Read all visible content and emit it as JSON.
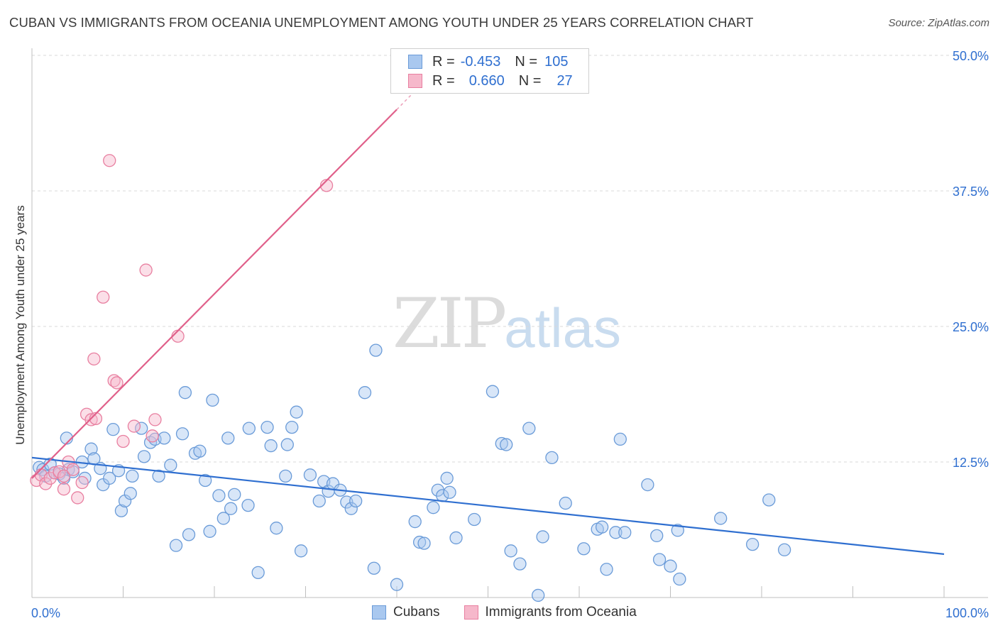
{
  "title": "CUBAN VS IMMIGRANTS FROM OCEANIA UNEMPLOYMENT AMONG YOUTH UNDER 25 YEARS CORRELATION CHART",
  "source": "Source: ZipAtlas.com",
  "watermark": {
    "zip": "ZIP",
    "atlas": "atlas"
  },
  "legend_top": {
    "row1": {
      "r_label": "R =",
      "r_value": "-0.453",
      "n_label": "N =",
      "n_value": "105"
    },
    "row2": {
      "r_label": "R =",
      "r_value": "0.660",
      "n_label": "N =",
      "n_value": "27"
    }
  },
  "legend_bottom": {
    "series1": "Cubans",
    "series2": "Immigrants from Oceania"
  },
  "colors": {
    "blue_fill": "#a9c8ef",
    "blue_stroke": "#6a9bd8",
    "blue_line": "#2f6fd0",
    "pink_fill": "#f6b8cb",
    "pink_stroke": "#e87fa0",
    "pink_line": "#e0608a",
    "tick_label": "#2f6fd0",
    "grid": "#d9d9d9"
  },
  "chart_data": {
    "type": "scatter",
    "title": "CUBAN VS IMMIGRANTS FROM OCEANIA UNEMPLOYMENT AMONG YOUTH UNDER 25 YEARS CORRELATION CHART",
    "xlabel": "",
    "ylabel": "Unemployment Among Youth under 25 years",
    "xlim": [
      0,
      100
    ],
    "ylim": [
      0,
      50
    ],
    "x_tick_labels": [
      "0.0%",
      "100.0%"
    ],
    "y_ticks": [
      12.5,
      25.0,
      37.5,
      50.0
    ],
    "y_tick_labels": [
      "12.5%",
      "25.0%",
      "37.5%",
      "50.0%"
    ],
    "grid": true,
    "legend_placement": "top-center",
    "series": [
      {
        "name": "Cubans",
        "r": -0.453,
        "n": 105,
        "trend": {
          "x": [
            0,
            100
          ],
          "y": [
            12.9,
            4.0
          ]
        },
        "points": [
          [
            0.8,
            12.0
          ],
          [
            1.2,
            11.8
          ],
          [
            1.5,
            11.2
          ],
          [
            2.0,
            12.3
          ],
          [
            2.5,
            11.5
          ],
          [
            3.0,
            11.4
          ],
          [
            3.5,
            11.0
          ],
          [
            4.0,
            11.8
          ],
          [
            3.8,
            14.7
          ],
          [
            4.5,
            11.6
          ],
          [
            5.5,
            12.5
          ],
          [
            5.8,
            11.0
          ],
          [
            6.5,
            13.7
          ],
          [
            6.8,
            12.8
          ],
          [
            7.5,
            11.9
          ],
          [
            7.8,
            10.4
          ],
          [
            8.5,
            11.0
          ],
          [
            8.9,
            15.5
          ],
          [
            9.5,
            11.7
          ],
          [
            9.8,
            8.0
          ],
          [
            10.2,
            8.9
          ],
          [
            10.8,
            9.6
          ],
          [
            11.0,
            11.2
          ],
          [
            12.0,
            15.6
          ],
          [
            12.3,
            13.0
          ],
          [
            13.0,
            14.3
          ],
          [
            13.5,
            14.6
          ],
          [
            13.9,
            11.2
          ],
          [
            14.5,
            14.7
          ],
          [
            15.2,
            12.2
          ],
          [
            15.8,
            4.8
          ],
          [
            16.5,
            15.1
          ],
          [
            16.8,
            18.9
          ],
          [
            17.2,
            5.8
          ],
          [
            17.9,
            13.3
          ],
          [
            18.4,
            13.5
          ],
          [
            19.0,
            10.8
          ],
          [
            19.5,
            6.1
          ],
          [
            19.8,
            18.2
          ],
          [
            20.5,
            9.4
          ],
          [
            21.0,
            7.3
          ],
          [
            21.5,
            14.7
          ],
          [
            21.8,
            8.2
          ],
          [
            22.2,
            9.5
          ],
          [
            23.7,
            8.5
          ],
          [
            23.8,
            15.6
          ],
          [
            24.8,
            2.3
          ],
          [
            25.8,
            15.7
          ],
          [
            26.2,
            14.0
          ],
          [
            26.8,
            6.4
          ],
          [
            27.8,
            11.2
          ],
          [
            28.0,
            14.1
          ],
          [
            28.5,
            15.7
          ],
          [
            29.0,
            17.1
          ],
          [
            29.5,
            4.3
          ],
          [
            30.5,
            11.3
          ],
          [
            31.5,
            8.9
          ],
          [
            32.0,
            10.7
          ],
          [
            32.5,
            9.8
          ],
          [
            33.0,
            10.5
          ],
          [
            33.8,
            9.9
          ],
          [
            34.5,
            8.8
          ],
          [
            35.0,
            8.2
          ],
          [
            35.5,
            8.9
          ],
          [
            36.5,
            18.9
          ],
          [
            37.5,
            2.7
          ],
          [
            37.7,
            22.8
          ],
          [
            40.0,
            1.2
          ],
          [
            42.0,
            7.0
          ],
          [
            42.5,
            5.1
          ],
          [
            43.0,
            5.0
          ],
          [
            44.0,
            8.3
          ],
          [
            44.5,
            9.9
          ],
          [
            45.0,
            9.4
          ],
          [
            45.5,
            11.0
          ],
          [
            45.8,
            9.7
          ],
          [
            46.5,
            5.5
          ],
          [
            48.5,
            7.2
          ],
          [
            50.5,
            19.0
          ],
          [
            51.5,
            14.2
          ],
          [
            52.0,
            14.1
          ],
          [
            52.5,
            4.3
          ],
          [
            53.5,
            3.1
          ],
          [
            54.5,
            15.6
          ],
          [
            55.5,
            0.2
          ],
          [
            57.0,
            12.9
          ],
          [
            58.5,
            8.7
          ],
          [
            60.5,
            4.5
          ],
          [
            62.0,
            6.3
          ],
          [
            62.5,
            6.5
          ],
          [
            63.0,
            2.6
          ],
          [
            64.0,
            6.0
          ],
          [
            64.5,
            14.6
          ],
          [
            65.0,
            6.0
          ],
          [
            67.5,
            10.4
          ],
          [
            68.5,
            5.7
          ],
          [
            68.8,
            3.5
          ],
          [
            70.0,
            2.9
          ],
          [
            70.8,
            6.2
          ],
          [
            71.0,
            1.7
          ],
          [
            75.5,
            7.3
          ],
          [
            79.0,
            4.9
          ],
          [
            80.8,
            9.0
          ],
          [
            82.5,
            4.4
          ],
          [
            56.0,
            5.6
          ]
        ]
      },
      {
        "name": "Immigrants from Oceania",
        "r": 0.66,
        "n": 27,
        "trend": {
          "x": [
            0,
            40
          ],
          "y": [
            11.0,
            45.0
          ],
          "dash_ext_x": [
            40,
            43.5
          ],
          "dash_ext_y": [
            45.0,
            48.0
          ]
        },
        "points": [
          [
            0.5,
            10.8
          ],
          [
            1.0,
            11.3
          ],
          [
            1.5,
            10.5
          ],
          [
            2.0,
            11.0
          ],
          [
            2.5,
            11.5
          ],
          [
            3.0,
            11.6
          ],
          [
            3.5,
            11.2
          ],
          [
            3.5,
            10.0
          ],
          [
            4.0,
            12.5
          ],
          [
            4.5,
            11.8
          ],
          [
            5.0,
            9.2
          ],
          [
            5.5,
            10.6
          ],
          [
            6.0,
            16.9
          ],
          [
            6.5,
            16.4
          ],
          [
            6.8,
            22.0
          ],
          [
            7.0,
            16.5
          ],
          [
            7.8,
            27.7
          ],
          [
            8.5,
            40.3
          ],
          [
            9.0,
            20.0
          ],
          [
            9.3,
            19.8
          ],
          [
            10.0,
            14.4
          ],
          [
            11.2,
            15.8
          ],
          [
            12.5,
            30.2
          ],
          [
            13.2,
            14.9
          ],
          [
            13.5,
            16.4
          ],
          [
            16.0,
            24.1
          ],
          [
            32.3,
            38.0
          ]
        ]
      }
    ]
  }
}
